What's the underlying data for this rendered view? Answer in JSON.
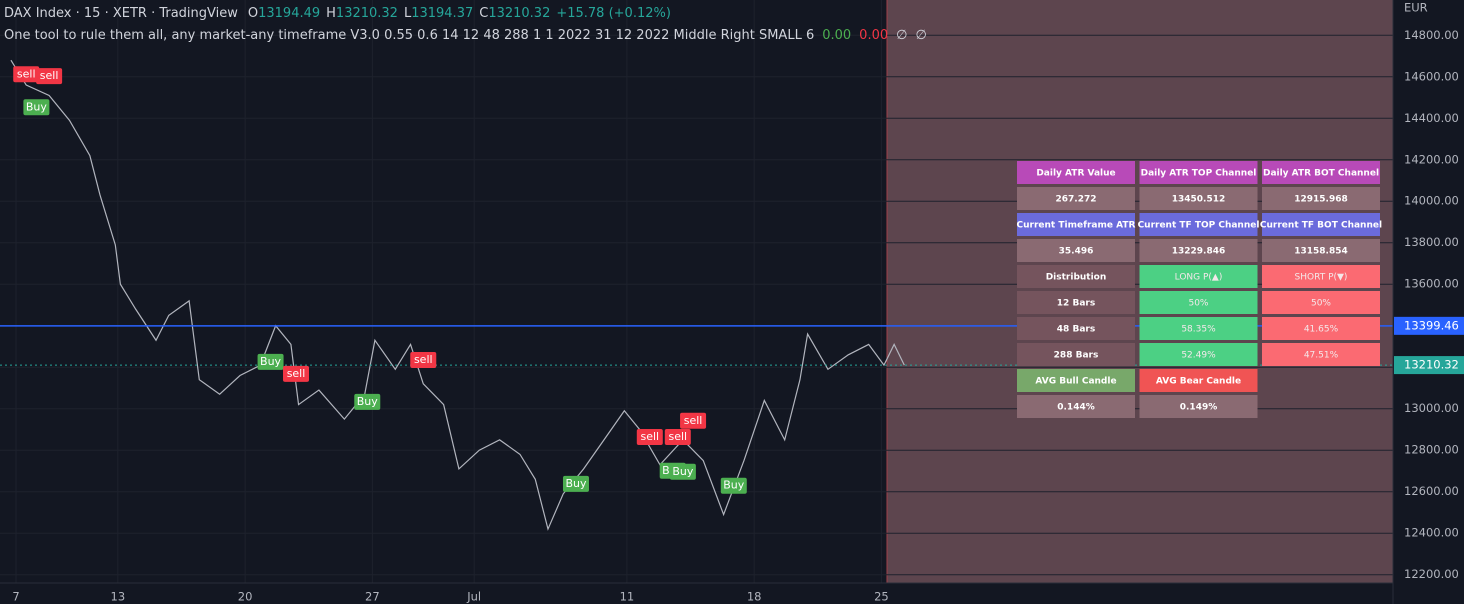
{
  "header": {
    "symbol": "DAX Index · 15 · XETR · TradingView",
    "ohlc": [
      [
        "O",
        "13194.49"
      ],
      [
        "H",
        "13210.32"
      ],
      [
        "L",
        "13194.37"
      ],
      [
        "C",
        "13210.32"
      ]
    ],
    "change": "+15.78 (+0.12%)",
    "indicator": "One tool to rule them all, any market-any timeframe V3.0 0.55 0.6 14 12 48 288 1 1 2022 31 12 2022 Middle Right SMALL 6",
    "indicator_values": [
      "0.00",
      "0.00",
      "∅",
      "∅"
    ]
  },
  "chart_data": {
    "type": "line",
    "currency": "EUR",
    "x": [
      -0.2,
      0.4,
      1.3,
      2.1,
      2.9,
      3.3,
      3.9,
      4.1,
      4.7,
      5.5,
      6.0,
      6.8,
      7.2,
      8.0,
      8.8,
      9.6,
      10.2,
      10.8,
      11.1,
      11.9,
      12.9,
      13.7,
      14.1,
      14.9,
      15.5,
      16.0,
      16.8,
      17.4,
      18.2,
      19.0,
      19.8,
      20.4,
      20.9,
      21.5,
      22.3,
      23.1,
      23.9,
      24.5,
      25.3,
      26.2,
      27.0,
      27.8,
      28.6,
      29.4,
      30.2,
      30.8,
      31.1,
      31.9,
      32.7,
      33.5,
      34.1,
      34.5,
      34.9
    ],
    "series": [
      {
        "name": "DAX Index",
        "color": "#b2b5be",
        "values": [
          14680,
          14560,
          14510,
          14390,
          14220,
          14030,
          13790,
          13600,
          13480,
          13330,
          13450,
          13520,
          13140,
          13070,
          13160,
          13210,
          13400,
          13310,
          13020,
          13090,
          12950,
          13070,
          13330,
          13190,
          13310,
          13120,
          13020,
          12710,
          12800,
          12850,
          12780,
          12660,
          12420,
          12590,
          12710,
          12850,
          12990,
          12900,
          12730,
          12850,
          12750,
          12490,
          12750,
          13040,
          12850,
          13140,
          13360,
          13190,
          13260,
          13310,
          13210,
          13310,
          13210
        ]
      }
    ],
    "xlim": [
      -0.63,
      54.1
    ],
    "ylim": [
      12160,
      14970
    ],
    "xticks": [
      {
        "value": 0,
        "label": "7"
      },
      {
        "value": 4,
        "label": "13"
      },
      {
        "value": 9,
        "label": "20"
      },
      {
        "value": 14,
        "label": "27"
      },
      {
        "value": 18,
        "label": "Jul"
      },
      {
        "value": 24,
        "label": "11"
      },
      {
        "value": 29,
        "label": "18"
      },
      {
        "value": 34,
        "label": "25"
      }
    ],
    "yticks": [
      {
        "value": 12200,
        "label": "12200.00"
      },
      {
        "value": 12400,
        "label": "12400.00"
      },
      {
        "value": 12600,
        "label": "12600.00"
      },
      {
        "value": 12800,
        "label": "12800.00"
      },
      {
        "value": 13000,
        "label": "13000.00"
      },
      {
        "value": 13200,
        "label": "13200.00"
      },
      {
        "value": 13400,
        "label": "13400.00"
      },
      {
        "value": 13600,
        "label": "13600.00"
      },
      {
        "value": 13800,
        "label": "13800.00"
      },
      {
        "value": 14000,
        "label": "14000.00"
      },
      {
        "value": 14200,
        "label": "14200.00"
      },
      {
        "value": 14400,
        "label": "14400.00"
      },
      {
        "value": 14600,
        "label": "14600.00"
      },
      {
        "value": 14800,
        "label": "14800.00"
      }
    ],
    "grid": true,
    "hlines": [
      {
        "value": 13399.46,
        "color": "#2962ff"
      },
      {
        "value": 13210.32,
        "color": "#26a69a"
      }
    ],
    "signals": [
      {
        "label": "sell",
        "x": 0.4,
        "y": 14612,
        "color": "#f23645"
      },
      {
        "label": "sell",
        "x": 1.3,
        "y": 14603,
        "color": "#f23645"
      },
      {
        "label": "Buy",
        "x": 0.8,
        "y": 14453,
        "color": "#4caf50"
      },
      {
        "label": "Buy",
        "x": 10.0,
        "y": 13226,
        "color": "#4caf50"
      },
      {
        "label": "sell",
        "x": 11.0,
        "y": 13168,
        "color": "#f23645"
      },
      {
        "label": "Buy",
        "x": 13.8,
        "y": 13033,
        "color": "#4caf50"
      },
      {
        "label": "sell",
        "x": 16.0,
        "y": 13235,
        "color": "#f23645"
      },
      {
        "label": "Buy",
        "x": 22.0,
        "y": 12638,
        "color": "#4caf50"
      },
      {
        "label": "sell",
        "x": 24.9,
        "y": 12864,
        "color": "#f23645"
      },
      {
        "label": "Buy",
        "x": 25.8,
        "y": 12701,
        "color": "#4caf50"
      },
      {
        "label": "sell",
        "x": 26.0,
        "y": 12864,
        "color": "#f23645"
      },
      {
        "label": "Buy",
        "x": 26.2,
        "y": 12696,
        "color": "#4caf50"
      },
      {
        "label": "sell",
        "x": 26.6,
        "y": 12942,
        "color": "#f23645"
      },
      {
        "label": "Buy",
        "x": 28.2,
        "y": 12629,
        "color": "#4caf50"
      }
    ]
  },
  "table": {
    "rows": [
      [
        "Daily ATR Value",
        "Daily ATR TOP Channel",
        "Daily ATR BOT Channel"
      ],
      [
        "267.272",
        "13450.512",
        "12915.968"
      ],
      [
        "Current Timeframe ATR",
        "Current TF TOP Channel",
        "Current TF BOT Channel"
      ],
      [
        "35.496",
        "13229.846",
        "13158.854"
      ],
      [
        "Distribution",
        "LONG P(▲)",
        "SHORT P(▼)"
      ],
      [
        "12 Bars",
        "50%",
        "50%"
      ],
      [
        "48 Bars",
        "58.35%",
        "41.65%"
      ],
      [
        "288 Bars",
        "52.49%",
        "47.51%"
      ],
      [
        "AVG Bull Candle",
        "AVG Bear Candle"
      ],
      [
        "0.144%",
        "0.149%"
      ]
    ]
  }
}
